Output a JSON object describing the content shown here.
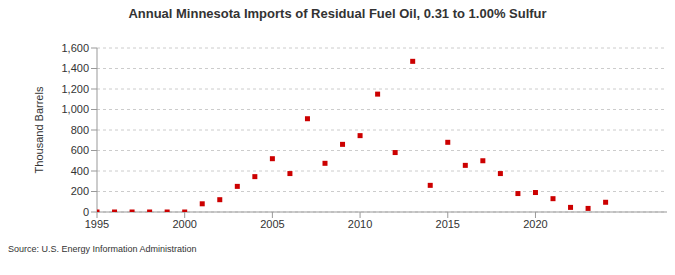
{
  "chart_data": {
    "type": "scatter",
    "title": "Annual Minnesota Imports of Residual Fuel Oil, 0.31 to 1.00% Sulfur",
    "y_label": "Thousand Barrels",
    "source": "Source: U.S. Energy Information Administration",
    "x": [
      1995,
      1996,
      1997,
      1998,
      1999,
      2000,
      2001,
      2002,
      2003,
      2004,
      2005,
      2006,
      2007,
      2008,
      2009,
      2010,
      2011,
      2012,
      2013,
      2014,
      2015,
      2016,
      2017,
      2018,
      2019,
      2020,
      2021,
      2022,
      2023,
      2024
    ],
    "values": [
      0,
      0,
      0,
      0,
      0,
      0,
      80,
      120,
      250,
      345,
      520,
      375,
      910,
      475,
      660,
      745,
      1150,
      580,
      1470,
      260,
      680,
      455,
      500,
      375,
      180,
      190,
      130,
      45,
      35,
      95
    ],
    "color": "#cc0000",
    "marker": "square",
    "xlim": [
      1995,
      2027.5
    ],
    "xticks": [
      1995,
      2000,
      2005,
      2010,
      2015,
      2020
    ],
    "ylim": [
      0,
      1600
    ],
    "yticks": [
      0,
      200,
      400,
      600,
      800,
      {
        "value": 1000,
        "label": "1,000"
      },
      {
        "value": 1200,
        "label": "1,200"
      },
      {
        "value": 1400,
        "label": "1,400"
      },
      {
        "value": 1600,
        "label": "1,600"
      }
    ],
    "grid": true
  }
}
